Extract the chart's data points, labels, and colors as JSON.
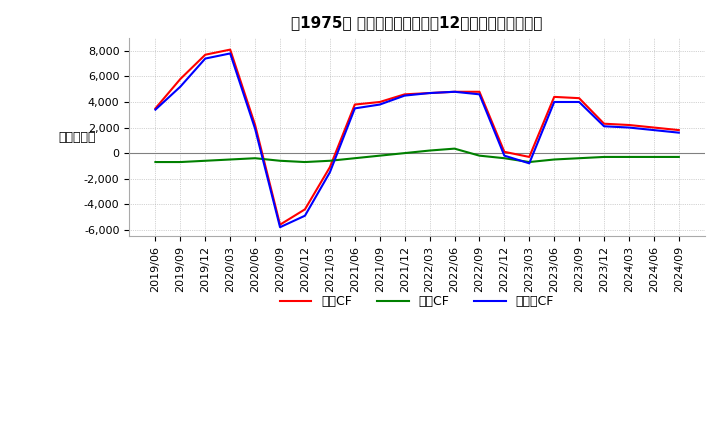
{
  "title": "[  1975  ]  キャッシュフローの12か月移動合計の推移",
  "title_display": "【1975】 キャッシュフローの12か月移動合計の推移",
  "ylabel": "（百万円）",
  "ylim": [
    -6500,
    9000
  ],
  "yticks": [
    -6000,
    -4000,
    -2000,
    0,
    2000,
    4000,
    6000,
    8000
  ],
  "dates": [
    "2019/06",
    "2019/09",
    "2019/12",
    "2020/03",
    "2020/06",
    "2020/09",
    "2020/12",
    "2021/03",
    "2021/06",
    "2021/09",
    "2021/12",
    "2022/03",
    "2022/06",
    "2022/09",
    "2022/12",
    "2023/03",
    "2023/06",
    "2023/09",
    "2023/12",
    "2024/03",
    "2024/06",
    "2024/09"
  ],
  "operating_cf": [
    3500,
    5800,
    7700,
    8100,
    2200,
    -5600,
    -4400,
    -1100,
    3800,
    4000,
    4600,
    4700,
    4800,
    4800,
    100,
    -300,
    4400,
    4300,
    2300,
    2200,
    2000,
    1800
  ],
  "investing_cf": [
    -700,
    -700,
    -600,
    -500,
    -400,
    -600,
    -700,
    -600,
    -400,
    -200,
    0,
    200,
    350,
    -200,
    -400,
    -700,
    -500,
    -400,
    -300,
    -300,
    -300,
    -300
  ],
  "free_cf": [
    3400,
    5200,
    7400,
    7800,
    1900,
    -5800,
    -4900,
    -1500,
    3500,
    3800,
    4500,
    4700,
    4800,
    4600,
    -200,
    -800,
    4000,
    4000,
    2100,
    2000,
    1800,
    1600
  ],
  "color_operating": "#ff0000",
  "color_investing": "#008000",
  "color_free": "#0000ff",
  "background_color": "#ffffff",
  "grid_color": "#aaaaaa",
  "title_fontsize": 11,
  "label_fontsize": 9,
  "tick_fontsize": 8,
  "legend_labels": [
    "営業CF",
    "投資CF",
    "フリーCF"
  ]
}
